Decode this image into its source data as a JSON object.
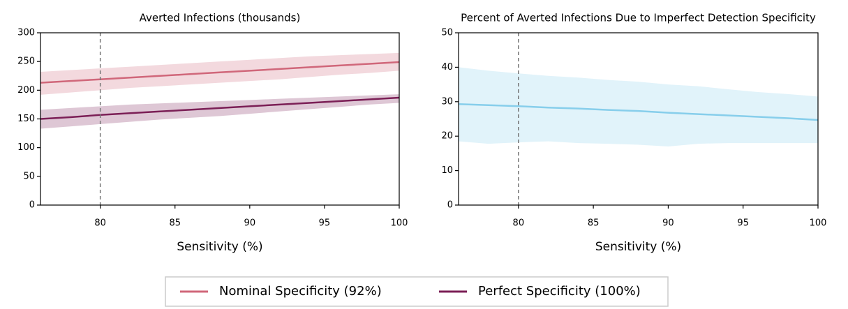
{
  "chart_data": [
    {
      "type": "line",
      "title": "Averted Infections (thousands)",
      "x_label": "Sensitivity (%)",
      "x": [
        76,
        78,
        80,
        82,
        84,
        86,
        88,
        90,
        92,
        94,
        96,
        98,
        100
      ],
      "xlim": [
        76,
        100
      ],
      "xticks": [
        80,
        85,
        90,
        95,
        100
      ],
      "ylim": [
        0,
        300
      ],
      "yticks": [
        0,
        50,
        100,
        150,
        200,
        250,
        300
      ],
      "vline": 80,
      "series": [
        {
          "name": "Nominal Specificity (92%)",
          "color": "#d0677a",
          "values": [
            213,
            216,
            219,
            222,
            225,
            228,
            231,
            234,
            237,
            240,
            243,
            246,
            249
          ],
          "lower": [
            192,
            196,
            200,
            204,
            207,
            210,
            213,
            216,
            219,
            223,
            227,
            230,
            234
          ],
          "upper": [
            232,
            235,
            238,
            241,
            244,
            247,
            250,
            253,
            256,
            259,
            261,
            263,
            265
          ]
        },
        {
          "name": "Perfect Specificity (100%)",
          "color": "#7b1f56",
          "values": [
            150,
            153,
            157,
            160,
            163,
            166,
            169,
            172,
            175,
            178,
            181,
            184,
            187
          ],
          "lower": [
            133,
            137,
            141,
            145,
            149,
            152,
            155,
            159,
            163,
            167,
            171,
            175,
            178
          ],
          "upper": [
            166,
            169,
            172,
            175,
            177,
            179,
            181,
            183,
            185,
            187,
            189,
            191,
            193
          ]
        }
      ]
    },
    {
      "type": "line",
      "title": "Percent of Averted Infections Due to Imperfect Detection Specificity",
      "x_label": "Sensitivity (%)",
      "x": [
        76,
        78,
        80,
        82,
        84,
        86,
        88,
        90,
        92,
        94,
        96,
        98,
        100
      ],
      "xlim": [
        76,
        100
      ],
      "xticks": [
        80,
        85,
        90,
        95,
        100
      ],
      "ylim": [
        0,
        50
      ],
      "yticks": [
        0,
        10,
        20,
        30,
        40,
        50
      ],
      "vline": 80,
      "series": [
        {
          "color": "#87ceeb",
          "values": [
            29.3,
            29,
            28.7,
            28.3,
            28,
            27.6,
            27.3,
            26.8,
            26.4,
            26,
            25.6,
            25.2,
            24.7
          ],
          "lower": [
            18.5,
            17.8,
            18.2,
            18.5,
            18,
            17.8,
            17.5,
            17,
            17.8,
            18,
            18,
            18,
            18
          ],
          "upper": [
            40,
            39,
            38.2,
            37.5,
            37,
            36.3,
            35.8,
            35,
            34.5,
            33.6,
            32.8,
            32.2,
            31.5
          ]
        }
      ]
    }
  ]
}
